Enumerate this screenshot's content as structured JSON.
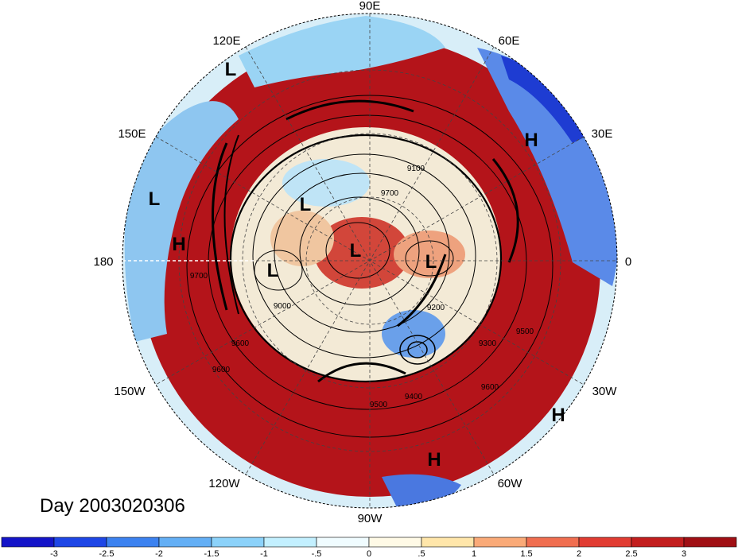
{
  "day_label": "Day 2003020306",
  "longitude_labels": {
    "90e": "90E",
    "120e": "120E",
    "60e": "60E",
    "150e": "150E",
    "30e": "30E",
    "180": "180",
    "0": "0",
    "150w": "150W",
    "30w": "30W",
    "120w": "120W",
    "60w": "60W",
    "90w": "90W"
  },
  "pressure_centers": [
    {
      "type": "L",
      "lon": "120E"
    },
    {
      "type": "L",
      "lon": "165E"
    },
    {
      "type": "H",
      "lon": "160E"
    },
    {
      "type": "H",
      "lon": "30E"
    },
    {
      "type": "L",
      "lon": "pole-north"
    },
    {
      "type": "L",
      "lon": "pole-center"
    },
    {
      "type": "L",
      "lon": "pole-west"
    },
    {
      "type": "L",
      "lon": "pole-east"
    },
    {
      "type": "H",
      "lon": "30W"
    },
    {
      "type": "H",
      "lon": "60W"
    }
  ],
  "contour_labels": [
    "9100",
    "9700",
    "9000",
    "9200",
    "9300",
    "9500",
    "9400",
    "9500",
    "9600",
    "9700",
    "9600",
    "9600"
  ],
  "colorbar": {
    "ticks": [
      "-3",
      "-2.5",
      "-2",
      "-1.5",
      "-1",
      "-.5",
      "0",
      ".5",
      "1",
      "1.5",
      "2",
      "2.5",
      "3"
    ],
    "colors": [
      "#1414c8",
      "#1e46e6",
      "#3c82f0",
      "#64aff5",
      "#8cd2fa",
      "#c3f0ff",
      "#f0fcff",
      "#fffae6",
      "#ffe6aa",
      "#faaa78",
      "#f06e50",
      "#e13c32",
      "#c31e1e",
      "#a00f14"
    ]
  }
}
